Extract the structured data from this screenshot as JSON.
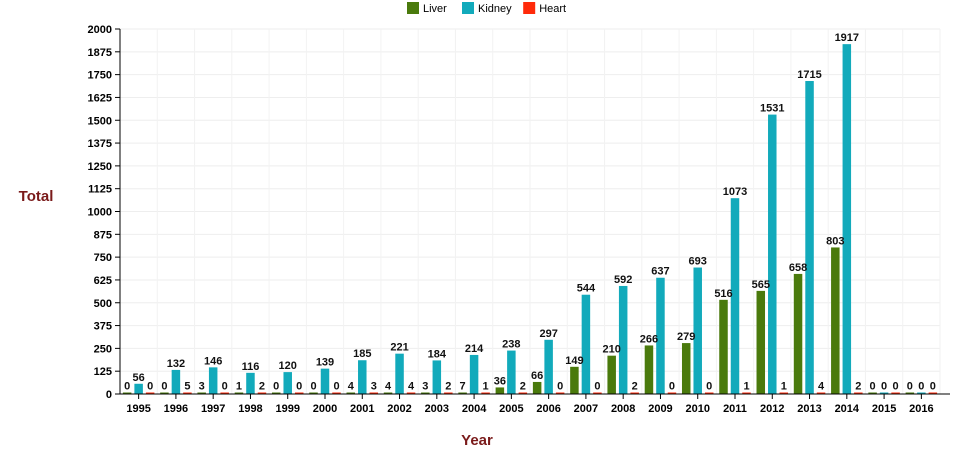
{
  "chart_data": {
    "type": "bar",
    "title": "",
    "xlabel": "Year",
    "ylabel": "Total",
    "ylim": [
      0,
      2000
    ],
    "yticks": [
      0,
      125,
      250,
      375,
      500,
      625,
      750,
      875,
      1000,
      1125,
      1250,
      1375,
      1500,
      1625,
      1750,
      1875,
      2000
    ],
    "grid": true,
    "legend_position": "top-center",
    "categories": [
      "1995",
      "1996",
      "1997",
      "1998",
      "1999",
      "2000",
      "2001",
      "2002",
      "2003",
      "2004",
      "2005",
      "2006",
      "2007",
      "2008",
      "2009",
      "2010",
      "2011",
      "2012",
      "2013",
      "2014",
      "2015",
      "2016"
    ],
    "series": [
      {
        "name": "Liver",
        "color": "#4a7a0c",
        "values": [
          0,
          0,
          3,
          1,
          0,
          0,
          4,
          4,
          3,
          7,
          36,
          66,
          149,
          210,
          266,
          279,
          516,
          565,
          658,
          803,
          0,
          0
        ]
      },
      {
        "name": "Kidney",
        "color": "#12aabb",
        "values": [
          56,
          132,
          146,
          116,
          120,
          139,
          185,
          221,
          184,
          214,
          238,
          297,
          544,
          592,
          637,
          693,
          1073,
          1531,
          1715,
          1917,
          0,
          0
        ]
      },
      {
        "name": "Heart",
        "color": "#ff2a0a",
        "values": [
          0,
          5,
          0,
          2,
          0,
          0,
          3,
          4,
          2,
          1,
          2,
          0,
          0,
          2,
          0,
          0,
          1,
          1,
          4,
          2,
          0,
          0
        ]
      }
    ]
  }
}
